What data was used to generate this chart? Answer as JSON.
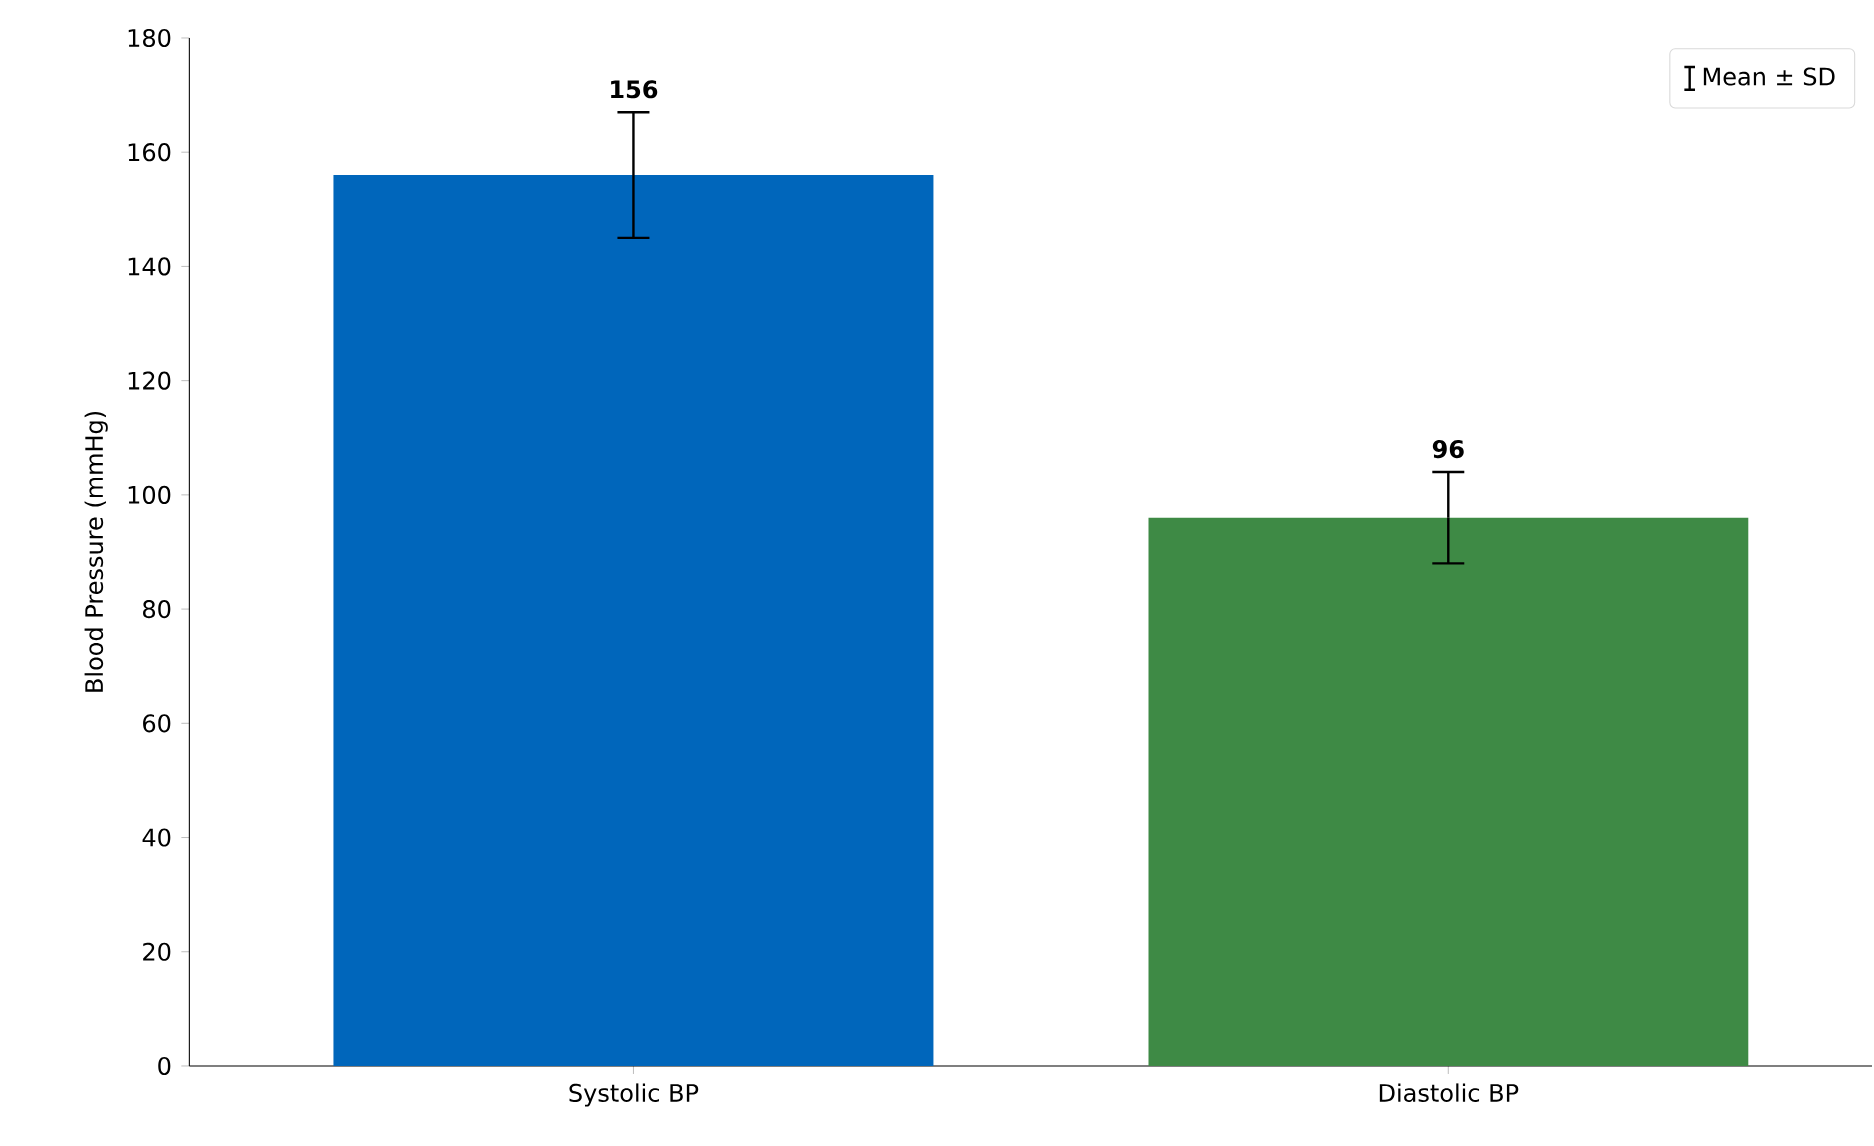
{
  "chart_data": {
    "type": "bar",
    "ylabel": "Blood Pressure (mmHg)",
    "categories": [
      "Systolic BP",
      "Diastolic BP"
    ],
    "series": [
      {
        "name": "Mean ± SD",
        "colors": [
          "#0066bb",
          "#3e8a45"
        ],
        "values": [
          156,
          96
        ],
        "errors": [
          11,
          8
        ]
      }
    ],
    "data_labels": true,
    "ylim": [
      0,
      180
    ],
    "yticks": [
      0,
      20,
      40,
      60,
      80,
      100,
      120,
      140,
      160,
      180
    ],
    "grid": false,
    "legend": "top right"
  }
}
